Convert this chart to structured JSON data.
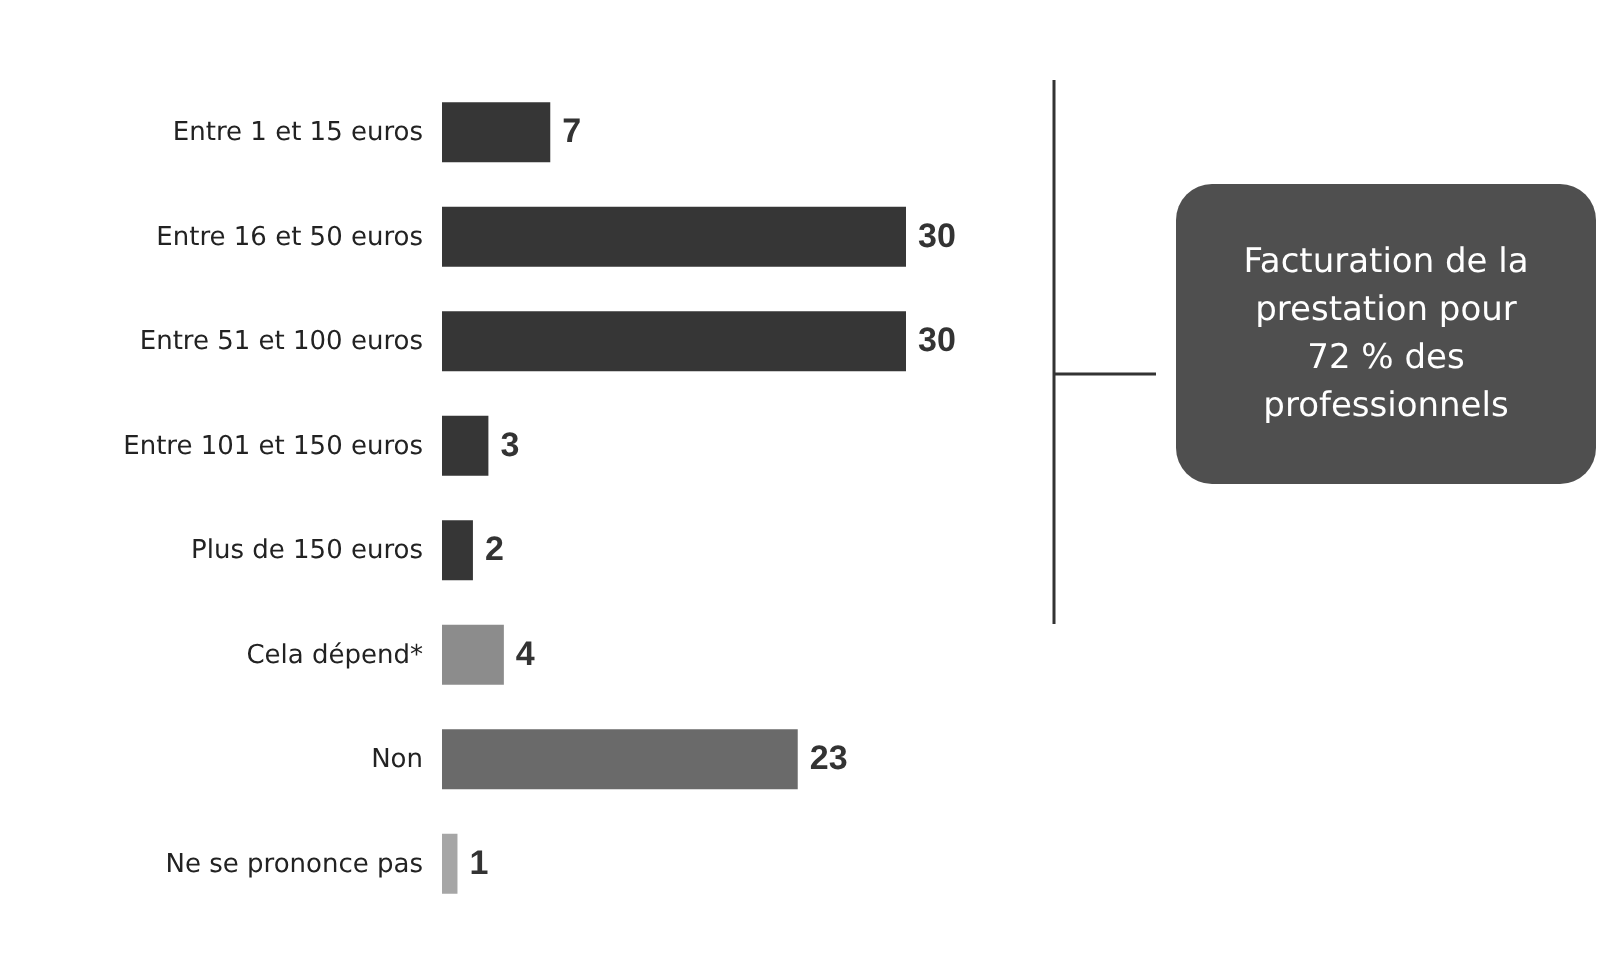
{
  "chart_data": {
    "type": "bar",
    "orientation": "horizontal",
    "categories": [
      "Entre 1 et 15 euros",
      "Entre 16 et 50 euros",
      "Entre 51 et 100 euros",
      "Entre 101 et 150 euros",
      "Plus de 150 euros",
      "Cela dépend*",
      "Non",
      "Ne se prononce pas"
    ],
    "values": [
      7,
      30,
      30,
      3,
      2,
      4,
      23,
      1
    ],
    "colors": [
      "#363636",
      "#363636",
      "#363636",
      "#363636",
      "#363636",
      "#8c8c8c",
      "#6a6a6a",
      "#a6a6a6"
    ],
    "data_labels": true,
    "grid": false,
    "annotations": [
      "Facturation de la prestation pour 72 % des professionnels"
    ]
  }
}
